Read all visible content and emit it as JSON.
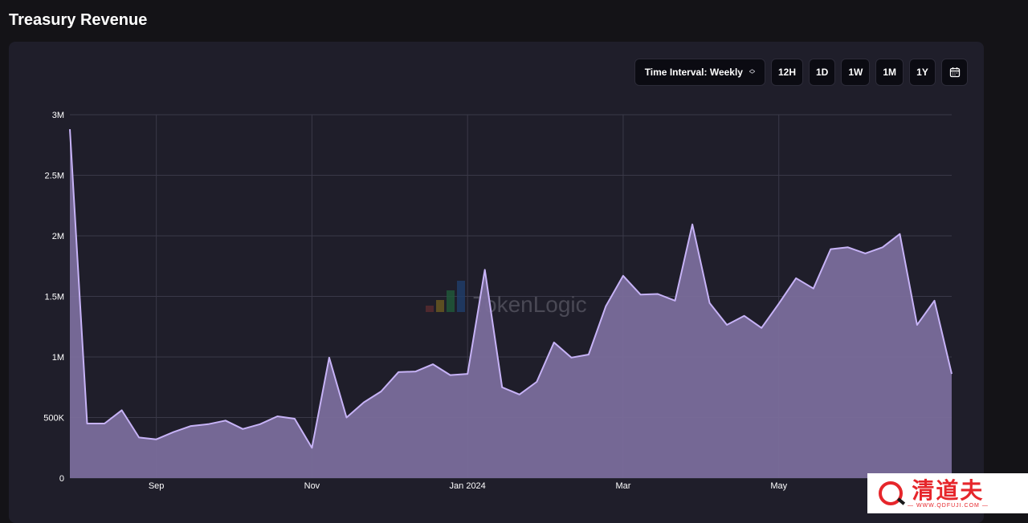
{
  "page": {
    "title": "Treasury Revenue"
  },
  "toolbar": {
    "interval_label": "Time Interval: Weekly",
    "ranges": [
      "12H",
      "1D",
      "1W",
      "1M",
      "1Y"
    ],
    "calendar_icon": "calendar-icon"
  },
  "watermark": {
    "text": "TokenLogic"
  },
  "brand": {
    "text": "清道夫",
    "url": "— WWW.QDFUJI.COM —"
  },
  "colors": {
    "line": "#c7b3f7",
    "area": "#7a6d9b",
    "grid": "#3a3948",
    "panel": "#1f1e2a"
  },
  "chart_data": {
    "type": "area",
    "title": "",
    "xlabel": "",
    "ylabel": "",
    "ylim": [
      0,
      3000000
    ],
    "yticks": [
      0,
      500000,
      1000000,
      1500000,
      2000000,
      2500000,
      3000000
    ],
    "ytick_labels": [
      "0",
      "500K",
      "1M",
      "1.5M",
      "2M",
      "2.5M",
      "3M"
    ],
    "xticks": [
      {
        "label": "Sep",
        "index": 5
      },
      {
        "label": "Nov",
        "index": 14
      },
      {
        "label": "Jan 2024",
        "index": 23
      },
      {
        "label": "Mar",
        "index": 32
      },
      {
        "label": "May",
        "index": 41
      }
    ],
    "grid": true,
    "legend": "none",
    "series": [
      {
        "values": [
          2880000,
          450000,
          450000,
          560000,
          335000,
          320000,
          380000,
          430000,
          445000,
          475000,
          405000,
          445000,
          510000,
          490000,
          250000,
          995000,
          500000,
          625000,
          715000,
          875000,
          880000,
          940000,
          850000,
          860000,
          1720000,
          750000,
          690000,
          795000,
          1120000,
          995000,
          1020000,
          1420000,
          1670000,
          1515000,
          1520000,
          1465000,
          2095000,
          1445000,
          1265000,
          1340000,
          1240000,
          1440000,
          1650000,
          1565000,
          1890000,
          1905000,
          1855000,
          1905000,
          2015000,
          1265000,
          1465000,
          860000
        ]
      }
    ]
  }
}
